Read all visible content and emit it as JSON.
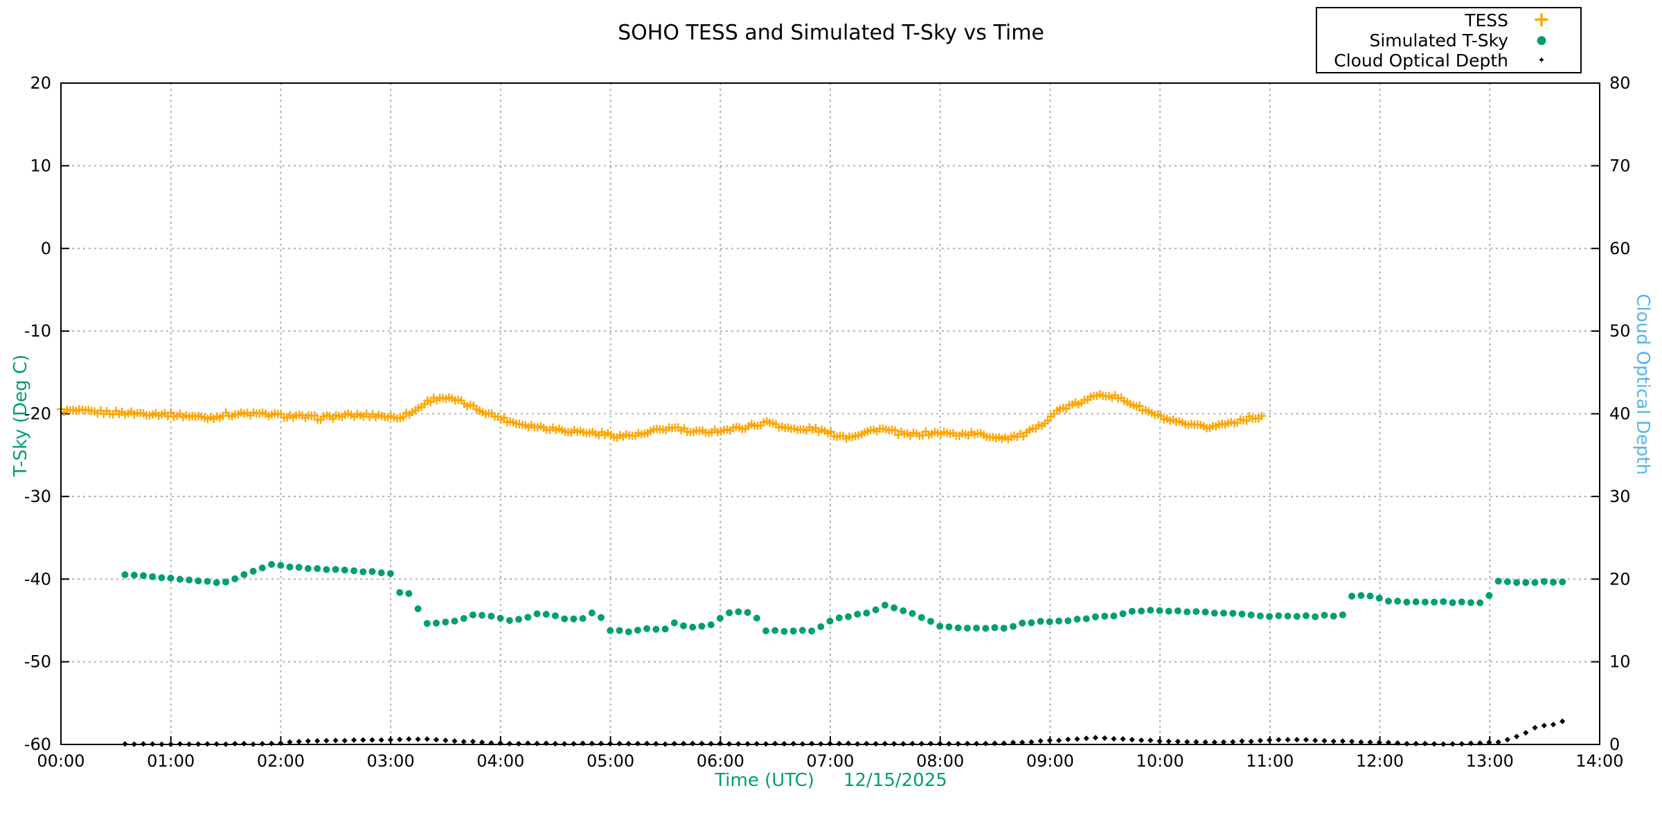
{
  "title": "SOHO TESS and Simulated T-Sky vs Time",
  "axis_labels": {
    "left": "T-Sky (Deg C)",
    "right": "Cloud Optical Depth",
    "x": "Time (UTC)",
    "x_date": "12/15/2025"
  },
  "colors": {
    "tess_orange": "#FFA500",
    "tsky_green": "#009E73",
    "right_label_blue": "#56B4E9",
    "cloud_black": "#000000",
    "grid_gray": "#b0b0b0",
    "frame_black": "#000000"
  },
  "legend": {
    "items": [
      {
        "label": "TESS",
        "marker": "plus-icon",
        "glyph": "+"
      },
      {
        "label": "Simulated T-Sky",
        "marker": "circle-icon",
        "glyph": "●"
      },
      {
        "label": "Cloud Optical Depth",
        "marker": "dot-icon",
        "glyph": "✦"
      }
    ]
  },
  "chart_data": {
    "type": "scatter",
    "title": "SOHO TESS and Simulated T-Sky vs Time",
    "xlabel": "Time (UTC)   12/15/2025",
    "ylabel_left": "T-Sky (Deg C)",
    "ylabel_right": "Cloud Optical Depth",
    "x_range_hours": [
      0,
      14
    ],
    "left_range": [
      -60,
      20
    ],
    "right_range": [
      0,
      80
    ],
    "x_tick_hours": [
      0,
      1,
      2,
      3,
      4,
      5,
      6,
      7,
      8,
      9,
      10,
      11,
      12,
      13,
      14
    ],
    "x_tick_labels": [
      "00:00",
      "01:00",
      "02:00",
      "03:00",
      "04:00",
      "05:00",
      "06:00",
      "07:00",
      "08:00",
      "09:00",
      "10:00",
      "11:00",
      "12:00",
      "13:00",
      "14:00"
    ],
    "left_ticks": [
      20,
      10,
      0,
      -10,
      -20,
      -30,
      -40,
      -50,
      -60
    ],
    "right_ticks": [
      80,
      70,
      60,
      50,
      40,
      30,
      20,
      10,
      0
    ],
    "grid": true,
    "legend_position": "top-right-outside",
    "series": [
      {
        "name": "TESS",
        "axis": "left",
        "marker": "plus",
        "color": "#FFA500",
        "t_start": 0.0,
        "t_end": 10.93,
        "step_hours": 0.0278,
        "noise": 0.25,
        "anchors": [
          [
            0.0,
            -19.6
          ],
          [
            0.3,
            -19.8
          ],
          [
            0.6,
            -19.9
          ],
          [
            0.9,
            -20.0
          ],
          [
            1.2,
            -20.3
          ],
          [
            1.35,
            -20.5
          ],
          [
            1.5,
            -20.1
          ],
          [
            1.7,
            -20.0
          ],
          [
            1.9,
            -20.1
          ],
          [
            2.1,
            -20.3
          ],
          [
            2.35,
            -20.5
          ],
          [
            2.6,
            -20.2
          ],
          [
            2.9,
            -20.2
          ],
          [
            3.05,
            -20.5
          ],
          [
            3.2,
            -19.8
          ],
          [
            3.35,
            -18.4
          ],
          [
            3.45,
            -18.0
          ],
          [
            3.6,
            -18.4
          ],
          [
            3.75,
            -19.2
          ],
          [
            3.9,
            -20.0
          ],
          [
            4.1,
            -21.0
          ],
          [
            4.3,
            -21.5
          ],
          [
            4.6,
            -22.0
          ],
          [
            4.9,
            -22.4
          ],
          [
            5.1,
            -22.7
          ],
          [
            5.3,
            -22.5
          ],
          [
            5.45,
            -21.9
          ],
          [
            5.6,
            -21.7
          ],
          [
            5.75,
            -22.3
          ],
          [
            5.9,
            -22.1
          ],
          [
            6.1,
            -21.9
          ],
          [
            6.3,
            -21.4
          ],
          [
            6.45,
            -21.0
          ],
          [
            6.55,
            -21.5
          ],
          [
            6.7,
            -22.0
          ],
          [
            6.85,
            -21.8
          ],
          [
            7.0,
            -22.4
          ],
          [
            7.15,
            -22.8
          ],
          [
            7.3,
            -22.3
          ],
          [
            7.45,
            -21.8
          ],
          [
            7.55,
            -22.1
          ],
          [
            7.7,
            -22.6
          ],
          [
            7.85,
            -22.4
          ],
          [
            8.0,
            -22.3
          ],
          [
            8.15,
            -22.5
          ],
          [
            8.3,
            -22.4
          ],
          [
            8.45,
            -22.7
          ],
          [
            8.6,
            -22.9
          ],
          [
            8.75,
            -22.6
          ],
          [
            8.9,
            -21.6
          ],
          [
            9.0,
            -20.3
          ],
          [
            9.1,
            -19.4
          ],
          [
            9.2,
            -19.0
          ],
          [
            9.35,
            -18.3
          ],
          [
            9.45,
            -17.5
          ],
          [
            9.55,
            -17.8
          ],
          [
            9.7,
            -18.5
          ],
          [
            9.85,
            -19.5
          ],
          [
            10.0,
            -20.4
          ],
          [
            10.15,
            -21.1
          ],
          [
            10.3,
            -21.5
          ],
          [
            10.45,
            -21.6
          ],
          [
            10.6,
            -21.2
          ],
          [
            10.75,
            -20.7
          ],
          [
            10.93,
            -20.3
          ]
        ]
      },
      {
        "name": "Simulated T-Sky",
        "axis": "left",
        "marker": "circle",
        "color": "#009E73",
        "t_start": 0.583,
        "t_end": 13.667,
        "step_hours": 0.0833,
        "noise": 0.08,
        "anchors": [
          [
            0.583,
            -39.4
          ],
          [
            0.8,
            -39.7
          ],
          [
            1.05,
            -40.0
          ],
          [
            1.3,
            -40.3
          ],
          [
            1.5,
            -40.4
          ],
          [
            1.65,
            -39.6
          ],
          [
            1.8,
            -38.7
          ],
          [
            1.95,
            -38.1
          ],
          [
            2.1,
            -38.6
          ],
          [
            2.35,
            -38.8
          ],
          [
            2.6,
            -38.9
          ],
          [
            2.8,
            -39.1
          ],
          [
            3.0,
            -39.3
          ],
          [
            3.08,
            -41.6
          ],
          [
            3.2,
            -41.9
          ],
          [
            3.3,
            -45.4
          ],
          [
            3.45,
            -45.3
          ],
          [
            3.6,
            -45.0
          ],
          [
            3.75,
            -44.3
          ],
          [
            3.95,
            -44.5
          ],
          [
            4.05,
            -45.0
          ],
          [
            4.15,
            -45.0
          ],
          [
            4.3,
            -44.3
          ],
          [
            4.45,
            -44.2
          ],
          [
            4.6,
            -44.8
          ],
          [
            4.75,
            -44.8
          ],
          [
            4.87,
            -43.7
          ],
          [
            5.0,
            -46.3
          ],
          [
            5.2,
            -46.3
          ],
          [
            5.35,
            -46.0
          ],
          [
            5.5,
            -46.0
          ],
          [
            5.57,
            -45.3
          ],
          [
            5.7,
            -45.8
          ],
          [
            5.85,
            -45.7
          ],
          [
            5.95,
            -45.4
          ],
          [
            6.05,
            -44.0
          ],
          [
            6.3,
            -44.0
          ],
          [
            6.4,
            -46.2
          ],
          [
            6.6,
            -46.3
          ],
          [
            6.85,
            -46.2
          ],
          [
            7.0,
            -45.0
          ],
          [
            7.2,
            -44.4
          ],
          [
            7.35,
            -44.1
          ],
          [
            7.5,
            -43.1
          ],
          [
            7.6,
            -43.5
          ],
          [
            7.75,
            -44.2
          ],
          [
            7.9,
            -45.1
          ],
          [
            8.0,
            -45.7
          ],
          [
            8.2,
            -45.9
          ],
          [
            8.4,
            -45.9
          ],
          [
            8.6,
            -45.9
          ],
          [
            8.75,
            -45.3
          ],
          [
            8.9,
            -45.2
          ],
          [
            9.1,
            -45.0
          ],
          [
            9.3,
            -44.9
          ],
          [
            9.45,
            -44.5
          ],
          [
            9.6,
            -44.4
          ],
          [
            9.75,
            -43.8
          ],
          [
            9.95,
            -43.8
          ],
          [
            10.1,
            -43.9
          ],
          [
            10.3,
            -43.9
          ],
          [
            10.5,
            -44.1
          ],
          [
            10.7,
            -44.2
          ],
          [
            10.9,
            -44.4
          ],
          [
            11.1,
            -44.5
          ],
          [
            11.3,
            -44.5
          ],
          [
            11.5,
            -44.45
          ],
          [
            11.67,
            -44.4
          ],
          [
            11.75,
            -42.0
          ],
          [
            11.85,
            -41.9
          ],
          [
            11.95,
            -42.1
          ],
          [
            12.05,
            -42.7
          ],
          [
            12.3,
            -42.75
          ],
          [
            12.6,
            -42.8
          ],
          [
            12.97,
            -42.8
          ],
          [
            13.05,
            -40.3
          ],
          [
            13.3,
            -40.35
          ],
          [
            13.5,
            -40.35
          ],
          [
            13.667,
            -40.4
          ]
        ]
      },
      {
        "name": "Cloud Optical Depth",
        "axis": "right",
        "marker": "dot",
        "color": "#000000",
        "t_start": 0.583,
        "t_end": 13.667,
        "step_hours": 0.0833,
        "noise": 0.04,
        "anchors": [
          [
            0.583,
            0.05
          ],
          [
            1.0,
            0.05
          ],
          [
            1.5,
            0.05
          ],
          [
            1.9,
            0.08
          ],
          [
            2.1,
            0.3
          ],
          [
            2.3,
            0.4
          ],
          [
            2.5,
            0.45
          ],
          [
            2.7,
            0.5
          ],
          [
            2.9,
            0.55
          ],
          [
            3.1,
            0.6
          ],
          [
            3.3,
            0.65
          ],
          [
            3.5,
            0.5
          ],
          [
            3.7,
            0.35
          ],
          [
            3.9,
            0.2
          ],
          [
            4.1,
            0.12
          ],
          [
            4.5,
            0.1
          ],
          [
            5.0,
            0.1
          ],
          [
            5.5,
            0.08
          ],
          [
            6.0,
            0.1
          ],
          [
            6.5,
            0.1
          ],
          [
            7.0,
            0.08
          ],
          [
            7.5,
            0.1
          ],
          [
            8.0,
            0.1
          ],
          [
            8.4,
            0.08
          ],
          [
            8.6,
            0.15
          ],
          [
            8.8,
            0.3
          ],
          [
            9.0,
            0.45
          ],
          [
            9.2,
            0.6
          ],
          [
            9.4,
            0.8
          ],
          [
            9.6,
            0.7
          ],
          [
            9.8,
            0.55
          ],
          [
            10.0,
            0.4
          ],
          [
            10.2,
            0.3
          ],
          [
            10.4,
            0.28
          ],
          [
            10.6,
            0.3
          ],
          [
            10.8,
            0.38
          ],
          [
            11.0,
            0.5
          ],
          [
            11.2,
            0.6
          ],
          [
            11.35,
            0.55
          ],
          [
            11.5,
            0.45
          ],
          [
            11.7,
            0.35
          ],
          [
            11.9,
            0.3
          ],
          [
            12.1,
            0.2
          ],
          [
            12.3,
            0.1
          ],
          [
            12.5,
            0.05
          ],
          [
            12.7,
            0.1
          ],
          [
            12.9,
            0.15
          ],
          [
            13.05,
            0.25
          ],
          [
            13.15,
            0.5
          ],
          [
            13.25,
            1.0
          ],
          [
            13.35,
            1.5
          ],
          [
            13.45,
            2.3
          ],
          [
            13.55,
            2.2
          ],
          [
            13.65,
            2.8
          ]
        ]
      }
    ]
  }
}
